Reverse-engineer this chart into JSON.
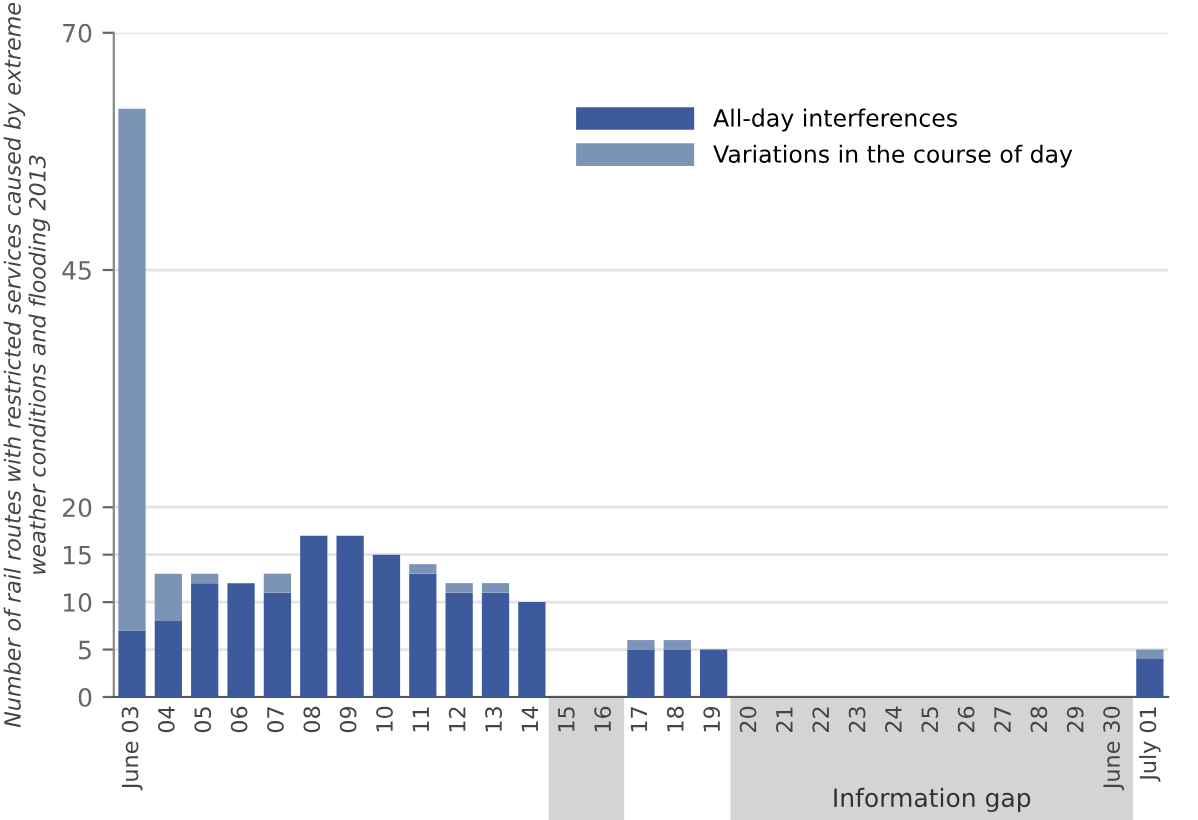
{
  "chart_data": {
    "type": "bar",
    "stacked": true,
    "ylabel": "Number of rail routes with restricted services caused by extreme weather conditions and flooding 2013",
    "categories": [
      "June 03",
      "04",
      "05",
      "06",
      "07",
      "08",
      "09",
      "10",
      "11",
      "12",
      "13",
      "14",
      "15",
      "16",
      "17",
      "18",
      "19",
      "20",
      "21",
      "22",
      "23",
      "24",
      "25",
      "26",
      "27",
      "28",
      "29",
      "June 30",
      "July 01"
    ],
    "series": [
      {
        "name": "All-day interferences",
        "color": "#3d5a9c",
        "values": [
          7,
          8,
          12,
          12,
          11,
          17,
          17,
          15,
          13,
          11,
          11,
          10,
          null,
          null,
          5,
          5,
          5,
          null,
          null,
          null,
          null,
          null,
          null,
          null,
          null,
          null,
          null,
          null,
          4
        ]
      },
      {
        "name": "Variations in the course of day",
        "color": "#7a93b6",
        "values": [
          55,
          5,
          1,
          0,
          2,
          0,
          0,
          0,
          1,
          1,
          1,
          0,
          null,
          null,
          1,
          1,
          0,
          null,
          null,
          null,
          null,
          null,
          null,
          null,
          null,
          null,
          null,
          null,
          1
        ]
      }
    ],
    "ylim": [
      0,
      70
    ],
    "yticks": [
      0,
      5,
      10,
      15,
      20,
      45,
      70
    ],
    "annotations": [
      "Information gap"
    ],
    "grid": "y",
    "legend": "top right"
  }
}
